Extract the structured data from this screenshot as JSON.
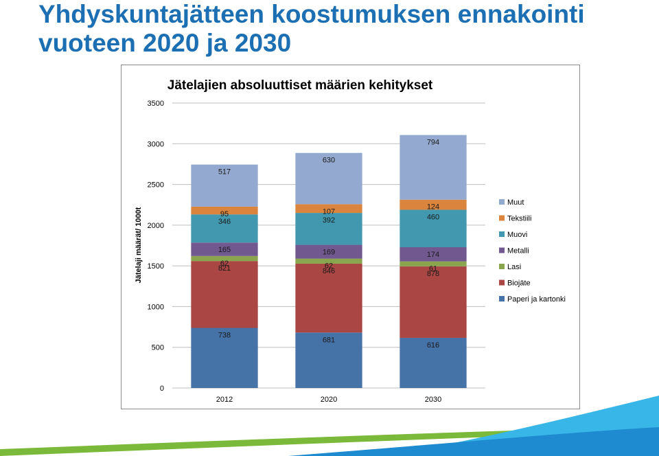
{
  "slide": {
    "title_line1": "Yhdyskuntajätteen koostumuksen ennakointi",
    "title_line2": "vuoteen 2020 ja 2030"
  },
  "colors": {
    "title": "#1b6fb2",
    "wave_dark": "#1e8ad0",
    "wave_light": "#38b6e8",
    "wave_green": "#7ab939"
  },
  "chart_data": {
    "type": "bar",
    "stacked": true,
    "title": "Jätelajien absoluuttiset määrien kehitykset",
    "xlabel": "",
    "ylabel": "Jätelaji määrät/ 1000t",
    "categories": [
      "2012",
      "2020",
      "2030"
    ],
    "ylim": [
      0,
      3500
    ],
    "yticks": [
      0,
      500,
      1000,
      1500,
      2000,
      2500,
      3000,
      3500
    ],
    "grid": true,
    "legend_position": "right",
    "series": [
      {
        "name": "Paperi ja kartonki",
        "color": "#4572a7",
        "values": [
          738,
          681,
          616
        ]
      },
      {
        "name": "Biojäte",
        "color": "#aa4643",
        "values": [
          821,
          846,
          878
        ]
      },
      {
        "name": "Lasi",
        "color": "#89a54e",
        "values": [
          62,
          62,
          61
        ]
      },
      {
        "name": "Metalli",
        "color": "#71588f",
        "values": [
          165,
          169,
          174
        ]
      },
      {
        "name": "Muovi",
        "color": "#4198af",
        "values": [
          346,
          392,
          460
        ]
      },
      {
        "name": "Tekstiili",
        "color": "#db843d",
        "values": [
          95,
          107,
          124
        ]
      },
      {
        "name": "Muut",
        "color": "#93a9cf",
        "values": [
          517,
          630,
          794
        ]
      }
    ]
  }
}
